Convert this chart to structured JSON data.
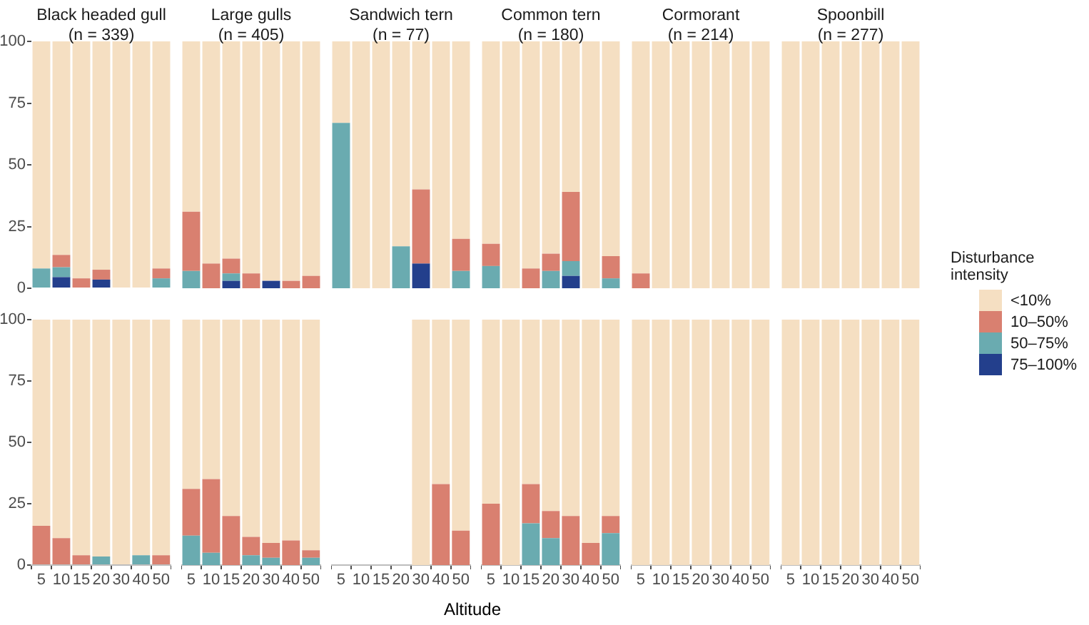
{
  "chart_data": [
    {
      "type": "bar",
      "title": "Black headed gull (n = 339)",
      "categories": [
        "5",
        "10",
        "15",
        "20",
        "30",
        "40",
        "50"
      ],
      "stacked": true,
      "ylim": [
        0,
        100
      ],
      "yticks": [
        0,
        25,
        50,
        75,
        100
      ],
      "tick_labels": "y",
      "legend": "right",
      "legend_title": "Disturbance intensity",
      "series": [
        {
          "name": "75–100%",
          "color": "#233f8c",
          "values": [
            0,
            4.5,
            0,
            3.5,
            0,
            0,
            0
          ]
        },
        {
          "name": "50–75%",
          "color": "#6aabb0",
          "values": [
            8,
            4,
            0,
            0,
            0,
            0,
            4
          ]
        },
        {
          "name": "10–50%",
          "color": "#d98070",
          "values": [
            0,
            5,
            4,
            4,
            0,
            0,
            4
          ]
        },
        {
          "name": "<10%",
          "color": "#f5dfc2",
          "values": [
            92,
            86.5,
            96,
            92.5,
            100,
            100,
            92
          ]
        }
      ]
    },
    {
      "type": "bar",
      "title": "Large gulls (n = 405)",
      "categories": [
        "5",
        "10",
        "15",
        "20",
        "30",
        "40",
        "50"
      ],
      "stacked": true,
      "ylim": [
        0,
        100
      ],
      "yticks": [
        0,
        25,
        50,
        75,
        100
      ],
      "tick_labels": false,
      "series": [
        {
          "color": "#233f8c",
          "values": [
            0,
            0,
            3,
            0,
            3,
            0,
            0
          ]
        },
        {
          "color": "#6aabb0",
          "values": [
            7,
            0,
            3,
            0,
            0,
            0,
            0
          ]
        },
        {
          "color": "#d98070",
          "values": [
            24,
            10,
            6,
            6,
            0,
            3,
            5
          ]
        },
        {
          "color": "#f5dfc2",
          "values": [
            69,
            90,
            88,
            94,
            97,
            97,
            95
          ]
        }
      ]
    },
    {
      "type": "bar",
      "title": "Sandwich tern (n = 77)",
      "categories": [
        "5",
        "10",
        "15",
        "20",
        "30",
        "40",
        "50"
      ],
      "stacked": true,
      "ylim": [
        0,
        100
      ],
      "yticks": [
        0,
        25,
        50,
        75,
        100
      ],
      "tick_labels": false,
      "series": [
        {
          "color": "#233f8c",
          "values": [
            0,
            0,
            0,
            0,
            10,
            0,
            0
          ]
        },
        {
          "color": "#6aabb0",
          "values": [
            67,
            0,
            0,
            17,
            0,
            0,
            7
          ]
        },
        {
          "color": "#d98070",
          "values": [
            0,
            0,
            0,
            0,
            30,
            0,
            13
          ]
        },
        {
          "color": "#f5dfc2",
          "values": [
            33,
            100,
            100,
            83,
            60,
            100,
            80
          ]
        }
      ]
    },
    {
      "type": "bar",
      "title": "Common tern (n = 180)",
      "categories": [
        "5",
        "10",
        "15",
        "20",
        "30",
        "40",
        "50"
      ],
      "stacked": true,
      "ylim": [
        0,
        100
      ],
      "yticks": [
        0,
        25,
        50,
        75,
        100
      ],
      "tick_labels": false,
      "series": [
        {
          "color": "#233f8c",
          "values": [
            0,
            0,
            0,
            0,
            5,
            0,
            0
          ]
        },
        {
          "color": "#6aabb0",
          "values": [
            9,
            0,
            0,
            7,
            6,
            0,
            4
          ]
        },
        {
          "color": "#d98070",
          "values": [
            9,
            0,
            8,
            7,
            28,
            0,
            9
          ]
        },
        {
          "color": "#f5dfc2",
          "values": [
            82,
            100,
            92,
            86,
            61,
            100,
            87
          ]
        }
      ]
    },
    {
      "type": "bar",
      "title": "Cormorant (n = 214)",
      "categories": [
        "5",
        "10",
        "15",
        "20",
        "30",
        "40",
        "50"
      ],
      "stacked": true,
      "ylim": [
        0,
        100
      ],
      "yticks": [
        0,
        25,
        50,
        75,
        100
      ],
      "tick_labels": false,
      "series": [
        {
          "color": "#233f8c",
          "values": [
            0,
            0,
            0,
            0,
            0,
            0,
            0
          ]
        },
        {
          "color": "#6aabb0",
          "values": [
            0,
            0,
            0,
            0,
            0,
            0,
            0
          ]
        },
        {
          "color": "#d98070",
          "values": [
            6,
            0,
            0,
            0,
            0,
            0,
            0
          ]
        },
        {
          "color": "#f5dfc2",
          "values": [
            94,
            100,
            100,
            100,
            100,
            100,
            100
          ]
        }
      ]
    },
    {
      "type": "bar",
      "title": "Spoonbill (n = 277)",
      "categories": [
        "5",
        "10",
        "15",
        "20",
        "30",
        "40",
        "50"
      ],
      "stacked": true,
      "ylim": [
        0,
        100
      ],
      "yticks": [
        0,
        25,
        50,
        75,
        100
      ],
      "tick_labels": false,
      "series": [
        {
          "color": "#233f8c",
          "values": [
            0,
            0,
            0,
            0,
            0,
            0,
            0
          ]
        },
        {
          "color": "#6aabb0",
          "values": [
            0,
            0,
            0,
            0,
            0,
            0,
            0
          ]
        },
        {
          "color": "#d98070",
          "values": [
            0,
            0,
            0,
            0,
            0,
            0,
            0
          ]
        },
        {
          "color": "#f5dfc2",
          "values": [
            100,
            100,
            100,
            100,
            100,
            100,
            100
          ]
        }
      ]
    },
    {
      "type": "bar",
      "categories": [
        "5",
        "10",
        "15",
        "20",
        "30",
        "40",
        "50"
      ],
      "stacked": true,
      "ylim": [
        0,
        100
      ],
      "yticks": [
        0,
        25,
        50,
        75,
        100
      ],
      "series": [
        {
          "color": "#233f8c",
          "values": [
            0,
            0,
            0,
            0,
            0,
            0,
            0
          ]
        },
        {
          "color": "#6aabb0",
          "values": [
            0,
            0,
            0,
            3.5,
            0,
            4,
            0
          ]
        },
        {
          "color": "#d98070",
          "values": [
            16,
            11,
            4,
            0,
            0,
            0,
            4
          ]
        },
        {
          "color": "#f5dfc2",
          "values": [
            84,
            89,
            96,
            96.5,
            100,
            96,
            96
          ]
        }
      ]
    },
    {
      "type": "bar",
      "categories": [
        "5",
        "10",
        "15",
        "20",
        "30",
        "40",
        "50"
      ],
      "stacked": true,
      "ylim": [
        0,
        100
      ],
      "yticks": [
        0,
        25,
        50,
        75,
        100
      ],
      "tick_labels": "x",
      "series": [
        {
          "color": "#233f8c",
          "values": [
            0,
            0,
            0,
            0,
            0,
            0,
            0
          ]
        },
        {
          "color": "#6aabb0",
          "values": [
            12,
            5,
            0,
            4,
            3,
            0,
            3
          ]
        },
        {
          "color": "#d98070",
          "values": [
            19,
            30,
            20,
            7.5,
            6,
            10,
            3
          ]
        },
        {
          "color": "#f5dfc2",
          "values": [
            69,
            65,
            80,
            88.5,
            91,
            90,
            94
          ]
        }
      ]
    },
    {
      "type": "bar",
      "categories": [
        "5",
        "10",
        "15",
        "20",
        "30",
        "40",
        "50"
      ],
      "stacked": true,
      "ylim": [
        0,
        100
      ],
      "yticks": [
        0,
        25,
        50,
        75,
        100
      ],
      "tick_labels": "x",
      "xlabel": "Altitude",
      "series": [
        {
          "color": "#233f8c",
          "values": [
            null,
            null,
            null,
            null,
            0,
            0,
            0
          ]
        },
        {
          "color": "#6aabb0",
          "values": [
            null,
            null,
            null,
            null,
            0,
            0,
            0
          ]
        },
        {
          "color": "#d98070",
          "values": [
            null,
            null,
            null,
            null,
            0,
            33,
            14
          ]
        },
        {
          "color": "#f5dfc2",
          "values": [
            null,
            null,
            null,
            null,
            100,
            67,
            86
          ]
        }
      ]
    },
    {
      "type": "bar",
      "categories": [
        "5",
        "10",
        "15",
        "20",
        "30",
        "40",
        "50"
      ],
      "stacked": true,
      "ylim": [
        0,
        100
      ],
      "yticks": [
        0,
        25,
        50,
        75,
        100
      ],
      "tick_labels": "x",
      "series": [
        {
          "color": "#233f8c",
          "values": [
            0,
            0,
            0,
            0,
            0,
            0,
            0
          ]
        },
        {
          "color": "#6aabb0",
          "values": [
            0,
            0,
            17,
            11,
            0,
            0,
            13
          ]
        },
        {
          "color": "#d98070",
          "values": [
            25,
            0,
            16,
            11,
            20,
            9,
            7
          ]
        },
        {
          "color": "#f5dfc2",
          "values": [
            75,
            100,
            67,
            78,
            80,
            91,
            80
          ]
        }
      ]
    },
    {
      "type": "bar",
      "categories": [
        "5",
        "10",
        "15",
        "20",
        "30",
        "40",
        "50"
      ],
      "stacked": true,
      "ylim": [
        0,
        100
      ],
      "yticks": [
        0,
        25,
        50,
        75,
        100
      ],
      "tick_labels": "x",
      "series": [
        {
          "color": "#233f8c",
          "values": [
            0,
            0,
            0,
            0,
            0,
            0,
            0
          ]
        },
        {
          "color": "#6aabb0",
          "values": [
            0,
            0,
            0,
            0,
            0,
            0,
            0
          ]
        },
        {
          "color": "#d98070",
          "values": [
            0,
            0,
            0,
            0,
            0,
            0,
            0
          ]
        },
        {
          "color": "#f5dfc2",
          "values": [
            100,
            100,
            100,
            100,
            100,
            100,
            100
          ]
        }
      ]
    },
    {
      "type": "bar",
      "categories": [
        "5",
        "10",
        "15",
        "20",
        "30",
        "40",
        "50"
      ],
      "stacked": true,
      "ylim": [
        0,
        100
      ],
      "yticks": [
        0,
        25,
        50,
        75,
        100
      ],
      "tick_labels": "x",
      "series": [
        {
          "color": "#233f8c",
          "values": [
            0,
            0,
            0,
            0,
            0,
            0,
            0
          ]
        },
        {
          "color": "#6aabb0",
          "values": [
            0,
            0,
            0,
            0,
            0,
            0,
            0
          ]
        },
        {
          "color": "#d98070",
          "values": [
            0,
            0,
            0,
            0,
            0,
            0,
            0
          ]
        },
        {
          "color": "#f5dfc2",
          "values": [
            100,
            100,
            100,
            100,
            100,
            100,
            100
          ]
        }
      ]
    }
  ]
}
